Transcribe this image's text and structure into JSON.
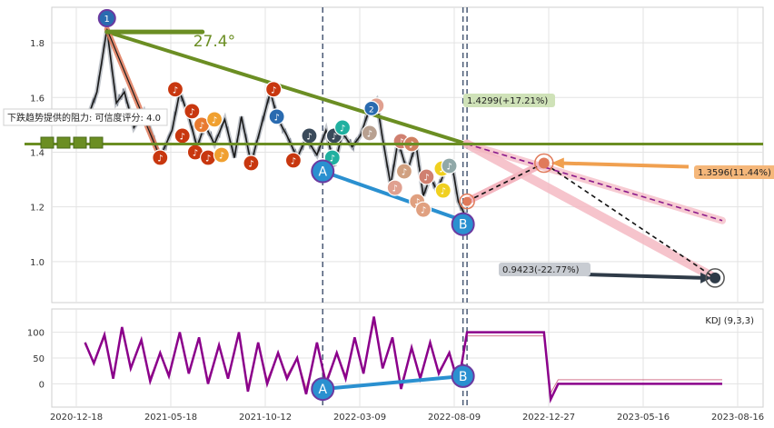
{
  "chart_data": [
    {
      "type": "line",
      "panel": "price",
      "y_ticks": [
        1.0,
        1.2,
        1.4,
        1.6,
        1.8
      ],
      "ylim": [
        0.85,
        1.93
      ],
      "grid": true,
      "price_series": [
        [
          "2021-01-01",
          1.5
        ],
        [
          "2021-01-20",
          1.62
        ],
        [
          "2021-02-05",
          1.85
        ],
        [
          "2021-02-20",
          1.58
        ],
        [
          "2021-03-05",
          1.62
        ],
        [
          "2021-03-20",
          1.49
        ],
        [
          "2021-04-05",
          1.55
        ],
        [
          "2021-04-20",
          1.45
        ],
        [
          "2021-05-01",
          1.38
        ],
        [
          "2021-05-20",
          1.48
        ],
        [
          "2021-06-01",
          1.62
        ],
        [
          "2021-06-15",
          1.53
        ],
        [
          "2021-06-28",
          1.42
        ],
        [
          "2021-07-10",
          1.5
        ],
        [
          "2021-07-25",
          1.43
        ],
        [
          "2021-08-10",
          1.52
        ],
        [
          "2021-08-25",
          1.38
        ],
        [
          "2021-09-05",
          1.53
        ],
        [
          "2021-09-20",
          1.36
        ],
        [
          "2021-10-05",
          1.49
        ],
        [
          "2021-10-20",
          1.62
        ],
        [
          "2021-11-01",
          1.52
        ],
        [
          "2021-11-15",
          1.46
        ],
        [
          "2021-12-01",
          1.38
        ],
        [
          "2021-12-15",
          1.45
        ],
        [
          "2022-01-01",
          1.39
        ],
        [
          "2022-01-15",
          1.48
        ],
        [
          "2022-01-28",
          1.35
        ],
        [
          "2022-02-10",
          1.47
        ],
        [
          "2022-02-25",
          1.42
        ],
        [
          "2022-03-10",
          1.46
        ],
        [
          "2022-03-25",
          1.56
        ],
        [
          "2022-04-05",
          1.59
        ],
        [
          "2022-04-15",
          1.45
        ],
        [
          "2022-04-28",
          1.28
        ],
        [
          "2022-05-10",
          1.44
        ],
        [
          "2022-05-25",
          1.33
        ],
        [
          "2022-06-08",
          1.43
        ],
        [
          "2022-06-20",
          1.24
        ],
        [
          "2022-07-01",
          1.31
        ],
        [
          "2022-07-12",
          1.26
        ],
        [
          "2022-07-25",
          1.33
        ],
        [
          "2022-08-05",
          1.36
        ],
        [
          "2022-08-15",
          1.22
        ],
        [
          "2022-08-25",
          1.17
        ]
      ],
      "vlines_dashed": [
        "2022-01-10",
        "2022-08-22",
        "2022-08-28"
      ],
      "support_line": {
        "y": 1.43
      },
      "trendlines": [
        {
          "name": "green-resistance",
          "from": [
            "2021-02-05",
            1.84
          ],
          "to": [
            "2022-08-28",
            1.43
          ]
        },
        {
          "name": "orange-downtrend",
          "from": [
            "2021-02-05",
            1.85
          ],
          "to": [
            "2021-05-01",
            1.38
          ]
        },
        {
          "name": "blue-ab",
          "from": [
            "2022-01-10",
            1.33
          ],
          "to": [
            "2022-08-22",
            1.15
          ]
        }
      ],
      "forecasts": [
        {
          "name": "up",
          "from": [
            "2022-08-28",
            1.22
          ],
          "to": [
            "2022-12-20",
            1.36
          ]
        },
        {
          "name": "down",
          "from": [
            "2022-12-20",
            1.36
          ],
          "to": [
            "2023-07-25",
            0.94
          ]
        },
        {
          "name": "purple",
          "from": [
            "2022-08-28",
            1.43
          ],
          "to": [
            "2023-08-01",
            1.15
          ]
        },
        {
          "name": "pink-band",
          "from": [
            "2022-08-28",
            1.43
          ],
          "to": [
            "2023-07-25",
            0.94
          ]
        }
      ],
      "annotations": {
        "angle": "27.4°",
        "target_up": "1.4299(+17.21%)",
        "target_mid": "1.3596(11.44%)",
        "target_down": "0.9423(-22.77%)",
        "resistance_note": "下跌趋势提供的阻力: 可信度评分: 4.0",
        "point_a": "A",
        "point_b": "B",
        "point_1": "1",
        "point_2": "2"
      },
      "markers": [
        [
          "2021-05-01",
          1.38,
          "#c8370f"
        ],
        [
          "2021-05-25",
          1.63,
          "#c8370f"
        ],
        [
          "2021-06-05",
          1.46,
          "#c8370f"
        ],
        [
          "2021-06-20",
          1.55,
          "#c8370f"
        ],
        [
          "2021-06-25",
          1.4,
          "#c8370f"
        ],
        [
          "2021-07-05",
          1.5,
          "#e87a30"
        ],
        [
          "2021-07-15",
          1.38,
          "#c8370f"
        ],
        [
          "2021-07-25",
          1.52,
          "#f0a030"
        ],
        [
          "2021-08-05",
          1.39,
          "#f0a030"
        ],
        [
          "2021-09-20",
          1.36,
          "#c8370f"
        ],
        [
          "2021-10-25",
          1.63,
          "#c8370f"
        ],
        [
          "2021-10-30",
          1.53,
          "#2a6bb0"
        ],
        [
          "2021-11-25",
          1.37,
          "#c8370f"
        ],
        [
          "2021-12-20",
          1.46,
          "#3a4a5a"
        ],
        [
          "2022-01-25",
          1.38,
          "#20b0a0"
        ],
        [
          "2022-01-28",
          1.46,
          "#3a4a5a"
        ],
        [
          "2022-02-10",
          1.49,
          "#20b0a0"
        ],
        [
          "2022-03-25",
          1.47,
          "#b8a090"
        ],
        [
          "2022-04-05",
          1.57,
          "#e0a090"
        ],
        [
          "2022-05-05",
          1.27,
          "#e0a090"
        ],
        [
          "2022-05-15",
          1.44,
          "#d08070"
        ],
        [
          "2022-05-20",
          1.33,
          "#d0a080"
        ],
        [
          "2022-06-01",
          1.43,
          "#d08060"
        ],
        [
          "2022-06-10",
          1.22,
          "#e0a080"
        ],
        [
          "2022-06-20",
          1.19,
          "#e0a080"
        ],
        [
          "2022-06-25",
          1.31,
          "#d08070"
        ],
        [
          "2022-07-20",
          1.34,
          "#f0d020"
        ],
        [
          "2022-07-22",
          1.26,
          "#f0d020"
        ],
        [
          "2022-08-01",
          1.35,
          "#90a8a8"
        ]
      ]
    },
    {
      "type": "line",
      "panel": "indicator",
      "name": "KDJ (9,3,3)",
      "y_ticks": [
        0,
        50,
        100
      ],
      "ylim": [
        -45,
        145
      ],
      "x_ticks": [
        "2020-12-18",
        "2021-05-18",
        "2021-10-12",
        "2022-03-09",
        "2022-08-09",
        "2022-12-27",
        "2023-05-16",
        "2023-08-16"
      ],
      "kdj": [
        [
          "2021-01-01",
          80
        ],
        [
          "2021-01-15",
          40
        ],
        [
          "2021-02-01",
          95
        ],
        [
          "2021-02-15",
          10
        ],
        [
          "2021-03-01",
          110
        ],
        [
          "2021-03-15",
          30
        ],
        [
          "2021-04-01",
          85
        ],
        [
          "2021-04-15",
          5
        ],
        [
          "2021-05-01",
          60
        ],
        [
          "2021-05-15",
          15
        ],
        [
          "2021-06-01",
          100
        ],
        [
          "2021-06-15",
          20
        ],
        [
          "2021-07-01",
          90
        ],
        [
          "2021-07-15",
          0
        ],
        [
          "2021-08-01",
          75
        ],
        [
          "2021-08-15",
          10
        ],
        [
          "2021-09-01",
          100
        ],
        [
          "2021-09-15",
          -15
        ],
        [
          "2021-10-01",
          80
        ],
        [
          "2021-10-15",
          0
        ],
        [
          "2021-11-01",
          60
        ],
        [
          "2021-11-15",
          10
        ],
        [
          "2021-12-01",
          50
        ],
        [
          "2021-12-15",
          -20
        ],
        [
          "2022-01-01",
          80
        ],
        [
          "2022-01-15",
          0
        ],
        [
          "2022-02-01",
          60
        ],
        [
          "2022-02-15",
          10
        ],
        [
          "2022-03-01",
          90
        ],
        [
          "2022-03-15",
          20
        ],
        [
          "2022-04-01",
          130
        ],
        [
          "2022-04-15",
          30
        ],
        [
          "2022-05-01",
          90
        ],
        [
          "2022-05-15",
          -10
        ],
        [
          "2022-06-01",
          70
        ],
        [
          "2022-06-15",
          10
        ],
        [
          "2022-07-01",
          80
        ],
        [
          "2022-07-15",
          20
        ],
        [
          "2022-08-01",
          60
        ],
        [
          "2022-08-15",
          0
        ],
        [
          "2022-08-28",
          100
        ],
        [
          "2022-09-15",
          100
        ],
        [
          "2022-12-20",
          100
        ],
        [
          "2022-12-30",
          -30
        ],
        [
          "2023-01-10",
          0
        ],
        [
          "2023-08-01",
          0
        ]
      ],
      "ab_line": {
        "from": [
          "2022-01-10",
          -10
        ],
        "to": [
          "2022-08-22",
          15
        ]
      }
    }
  ]
}
